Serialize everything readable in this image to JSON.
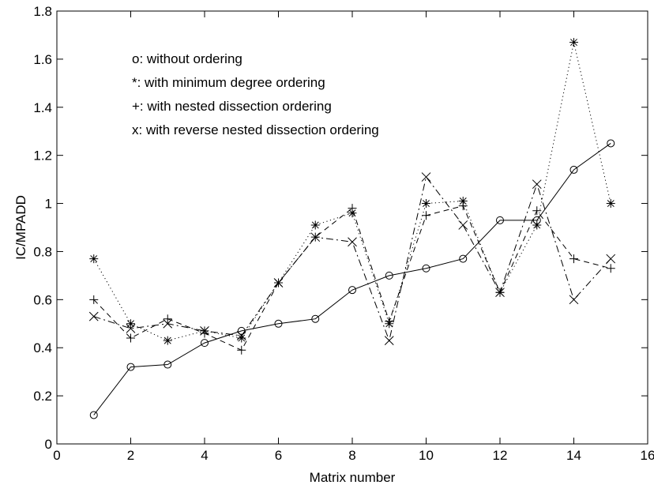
{
  "chart_data": {
    "type": "line",
    "title": "",
    "xlabel": "Matrix number",
    "ylabel": "IC/MPADD",
    "xlim": [
      0,
      16
    ],
    "ylim": [
      0,
      1.8
    ],
    "xticks": [
      0,
      2,
      4,
      6,
      8,
      10,
      12,
      14,
      16
    ],
    "yticks": [
      0,
      0.2,
      0.4,
      0.6,
      0.8,
      1,
      1.2,
      1.4,
      1.6,
      1.8
    ],
    "xtick_labels": [
      "0",
      "2",
      "4",
      "6",
      "8",
      "10",
      "12",
      "14",
      "16"
    ],
    "ytick_labels": [
      "0",
      "0.2",
      "0.4",
      "0.6",
      "0.8",
      "1",
      "1.2",
      "1.4",
      "1.6",
      "1.8"
    ],
    "grid": false,
    "legend_placement": "top-left",
    "x": [
      1,
      2,
      3,
      4,
      5,
      6,
      7,
      8,
      9,
      10,
      11,
      12,
      13,
      14,
      15
    ],
    "series": [
      {
        "legend": "o:  without ordering",
        "marker": "circle",
        "line_style": "solid",
        "values": [
          0.12,
          0.32,
          0.33,
          0.42,
          0.47,
          0.5,
          0.52,
          0.64,
          0.7,
          0.73,
          0.77,
          0.93,
          0.93,
          1.14,
          1.25
        ]
      },
      {
        "legend": "*:  with minimum degree ordering",
        "marker": "star",
        "line_style": "dotted",
        "values": [
          0.77,
          0.5,
          0.43,
          0.47,
          0.44,
          0.67,
          0.91,
          0.96,
          0.5,
          1.0,
          1.01,
          0.63,
          0.91,
          1.67,
          1.0
        ]
      },
      {
        "legend": "+:  with nested dissection ordering",
        "marker": "plus",
        "line_style": "dashed",
        "values": [
          0.6,
          0.44,
          0.52,
          0.46,
          0.39,
          0.67,
          0.86,
          0.98,
          0.51,
          0.95,
          0.99,
          0.63,
          0.97,
          0.77,
          0.73
        ]
      },
      {
        "legend": "x:  with reverse nested dissection ordering",
        "marker": "x",
        "line_style": "dashdot",
        "values": [
          0.53,
          0.48,
          0.5,
          0.47,
          0.45,
          0.67,
          0.86,
          0.84,
          0.43,
          1.11,
          0.91,
          0.63,
          1.08,
          0.6,
          0.77
        ]
      }
    ]
  }
}
